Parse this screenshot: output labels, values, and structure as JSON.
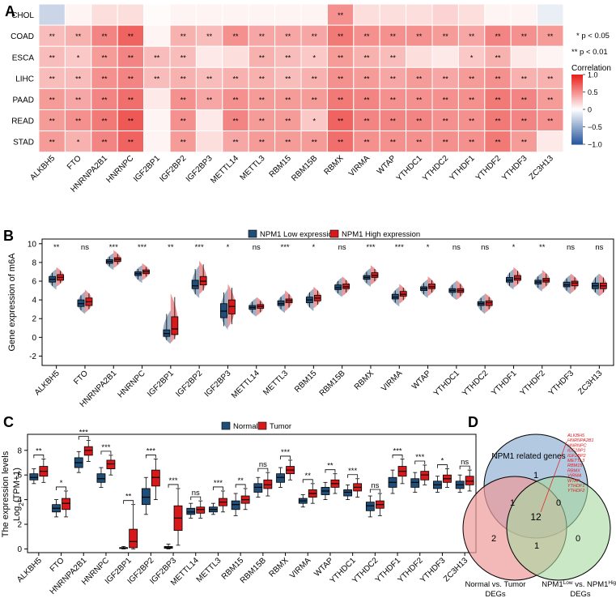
{
  "panels": {
    "a": "A",
    "b": "B",
    "c": "C",
    "d": "D"
  },
  "genes": [
    "ALKBH5",
    "FTO",
    "HNRNPA2B1",
    "HNRNPC",
    "IGF2BP1",
    "IGF2BP2",
    "IGF2BP3",
    "METTL14",
    "METTL3",
    "RBM15",
    "RBM15B",
    "RBMX",
    "VIRMA",
    "WTAP",
    "YTHDC1",
    "YTHDC2",
    "YTHDF1",
    "YTHDF2",
    "YTHDF3",
    "ZC3H13"
  ],
  "chart_data": [
    {
      "panel": "A",
      "type": "heatmap",
      "rows": [
        "CHOL",
        "COAD",
        "ESCA",
        "LIHC",
        "PAAD",
        "READ",
        "STAD"
      ],
      "columns": [
        "ALKBH5",
        "FTO",
        "HNRNPA2B1",
        "HNRNPC",
        "IGF2BP1",
        "IGF2BP2",
        "IGF2BP3",
        "METTL14",
        "METTL3",
        "RBM15",
        "RBM15B",
        "RBMX",
        "VIRMA",
        "WTAP",
        "YTHDC1",
        "YTHDC2",
        "YTHDF1",
        "YTHDF2",
        "YTHDF3",
        "ZC3H13"
      ],
      "values": [
        [
          -0.25,
          0.05,
          0.15,
          0.15,
          0.02,
          0.05,
          0.05,
          0.05,
          0.05,
          0.05,
          0.05,
          0.5,
          0.15,
          0.15,
          0.15,
          0.2,
          0.15,
          0.05,
          0.05,
          -0.1
        ],
        [
          0.3,
          0.35,
          0.55,
          0.7,
          0.05,
          0.35,
          0.3,
          0.5,
          0.4,
          0.4,
          0.4,
          0.6,
          0.5,
          0.5,
          0.5,
          0.45,
          0.4,
          0.55,
          0.5,
          0.45
        ],
        [
          0.3,
          0.25,
          0.45,
          0.55,
          0.3,
          0.3,
          0.1,
          0.15,
          0.35,
          0.3,
          0.25,
          0.45,
          0.35,
          0.3,
          0.15,
          0.1,
          0.25,
          0.35,
          0.1,
          0.05
        ],
        [
          0.3,
          0.3,
          0.5,
          0.55,
          0.3,
          0.35,
          0.3,
          0.35,
          0.35,
          0.3,
          0.35,
          0.5,
          0.45,
          0.4,
          0.45,
          0.4,
          0.45,
          0.5,
          0.35,
          0.35
        ],
        [
          0.45,
          0.4,
          0.55,
          0.65,
          0.1,
          0.5,
          0.4,
          0.5,
          0.45,
          0.45,
          0.45,
          0.6,
          0.55,
          0.5,
          0.5,
          0.5,
          0.5,
          0.6,
          0.55,
          0.45
        ],
        [
          0.45,
          0.5,
          0.6,
          0.75,
          0.05,
          0.5,
          0.1,
          0.55,
          0.45,
          0.45,
          0.25,
          0.7,
          0.55,
          0.55,
          0.55,
          0.5,
          0.5,
          0.6,
          0.55,
          0.5
        ],
        [
          0.45,
          0.35,
          0.55,
          0.7,
          0.05,
          0.45,
          0.15,
          0.4,
          0.45,
          0.45,
          0.45,
          0.65,
          0.5,
          0.5,
          0.5,
          0.5,
          0.5,
          0.6,
          0.45,
          0.1
        ]
      ],
      "stars": [
        [
          "",
          "",
          "",
          "",
          "",
          "",
          "",
          "",
          "",
          "",
          "",
          "**",
          "",
          "",
          "",
          "",
          "",
          "",
          "",
          ""
        ],
        [
          "**",
          "**",
          "**",
          "**",
          "",
          "**",
          "**",
          "**",
          "**",
          "**",
          "**",
          "**",
          "**",
          "**",
          "**",
          "**",
          "**",
          "**",
          "**",
          "**"
        ],
        [
          "**",
          "*",
          "**",
          "**",
          "**",
          "**",
          "",
          "",
          "**",
          "**",
          "*",
          "**",
          "**",
          "**",
          "",
          "",
          "*",
          "**",
          "",
          ""
        ],
        [
          "**",
          "**",
          "**",
          "**",
          "**",
          "**",
          "**",
          "**",
          "**",
          "**",
          "**",
          "**",
          "**",
          "**",
          "**",
          "**",
          "**",
          "**",
          "**",
          "**"
        ],
        [
          "**",
          "**",
          "**",
          "**",
          "",
          "**",
          "**",
          "**",
          "**",
          "**",
          "**",
          "**",
          "**",
          "**",
          "**",
          "**",
          "**",
          "**",
          "**",
          "**"
        ],
        [
          "**",
          "**",
          "**",
          "**",
          "",
          "**",
          "",
          "**",
          "**",
          "**",
          "*",
          "**",
          "**",
          "**",
          "**",
          "**",
          "**",
          "**",
          "**",
          "**"
        ],
        [
          "**",
          "*",
          "**",
          "**",
          "",
          "**",
          "",
          "**",
          "**",
          "**",
          "**",
          "**",
          "**",
          "**",
          "**",
          "**",
          "**",
          "**",
          "**",
          ""
        ]
      ],
      "sig_notes": [
        "* p < 0.05",
        "** p < 0.01"
      ],
      "legend_title": "Correlation",
      "legend_ticks": [
        "1.0",
        "0.5",
        "0",
        "−0.5",
        "−1.0"
      ],
      "legend_values": [
        1.0,
        0.5,
        0,
        -0.5,
        -1.0
      ],
      "colors": {
        "neg": "#2c5aa0",
        "mid": "#ffffff",
        "pos": "#e8221d"
      }
    },
    {
      "panel": "B",
      "type": "box",
      "ylabel": "Gene expression of m6A",
      "ylim": [
        -3,
        10.5
      ],
      "yticks": [
        -2,
        0,
        2,
        4,
        6,
        8,
        10
      ],
      "series": [
        {
          "name": "NPM1 Low expression",
          "color": "#1f4e79",
          "stats": [
            [
              5.5,
              5.9,
              6.2,
              6.5,
              6.9
            ],
            [
              2.9,
              3.3,
              3.6,
              4.0,
              4.5
            ],
            [
              7.6,
              7.9,
              8.1,
              8.3,
              8.6
            ],
            [
              6.2,
              6.6,
              6.8,
              7.0,
              7.3
            ],
            [
              -0.3,
              0.1,
              0.4,
              0.8,
              2.5
            ],
            [
              4.6,
              5.2,
              5.5,
              6.1,
              7.3
            ],
            [
              1.2,
              2.1,
              2.8,
              3.6,
              4.8
            ],
            [
              2.6,
              3.0,
              3.2,
              3.4,
              3.8
            ],
            [
              3.0,
              3.4,
              3.6,
              3.9,
              4.3
            ],
            [
              3.2,
              3.7,
              4.0,
              4.3,
              4.8
            ],
            [
              4.7,
              5.1,
              5.3,
              5.6,
              6.0
            ],
            [
              5.8,
              6.2,
              6.4,
              6.6,
              7.0
            ],
            [
              3.7,
              4.1,
              4.3,
              4.6,
              5.0
            ],
            [
              4.6,
              5.0,
              5.2,
              5.4,
              5.8
            ],
            [
              4.4,
              4.8,
              5.0,
              5.2,
              5.6
            ],
            [
              2.9,
              3.4,
              3.6,
              3.8,
              4.2
            ],
            [
              5.5,
              5.9,
              6.1,
              6.4,
              6.9
            ],
            [
              5.3,
              5.7,
              5.9,
              6.1,
              6.5
            ],
            [
              5.0,
              5.4,
              5.6,
              5.9,
              6.3
            ],
            [
              4.8,
              5.2,
              5.5,
              5.8,
              6.4
            ]
          ]
        },
        {
          "name": "NPM1 High expression",
          "color": "#d7191c",
          "stats": [
            [
              5.8,
              6.1,
              6.4,
              6.7,
              7.1
            ],
            [
              3.0,
              3.4,
              3.8,
              4.2,
              4.7
            ],
            [
              7.8,
              8.1,
              8.3,
              8.5,
              8.9
            ],
            [
              6.5,
              6.8,
              7.0,
              7.2,
              7.5
            ],
            [
              -0.2,
              0.3,
              0.9,
              2.2,
              4.3
            ],
            [
              5.0,
              5.6,
              6.0,
              6.5,
              7.8
            ],
            [
              1.4,
              2.5,
              3.3,
              4.0,
              5.3
            ],
            [
              2.7,
              3.1,
              3.3,
              3.5,
              3.9
            ],
            [
              3.2,
              3.7,
              3.9,
              4.1,
              4.6
            ],
            [
              3.5,
              3.9,
              4.2,
              4.5,
              5.0
            ],
            [
              4.8,
              5.2,
              5.4,
              5.7,
              6.1
            ],
            [
              6.0,
              6.4,
              6.6,
              6.9,
              7.3
            ],
            [
              4.0,
              4.4,
              4.6,
              4.9,
              5.3
            ],
            [
              4.8,
              5.2,
              5.4,
              5.7,
              6.1
            ],
            [
              4.4,
              4.8,
              5.0,
              5.2,
              5.7
            ],
            [
              3.0,
              3.4,
              3.7,
              3.9,
              4.3
            ],
            [
              5.7,
              6.1,
              6.3,
              6.6,
              7.1
            ],
            [
              5.5,
              5.9,
              6.1,
              6.3,
              6.8
            ],
            [
              5.1,
              5.5,
              5.8,
              6.0,
              6.4
            ],
            [
              4.8,
              5.2,
              5.5,
              5.8,
              6.4
            ]
          ]
        }
      ],
      "sig": [
        "**",
        "ns",
        "***",
        "***",
        "**",
        "***",
        "*",
        "ns",
        "***",
        "*",
        "ns",
        "***",
        "***",
        "*",
        "ns",
        "ns",
        "*",
        "**",
        "ns",
        "ns"
      ]
    },
    {
      "panel": "C",
      "type": "box",
      "ylabel": "The expression levels",
      "ylabel2_base": "Log",
      "ylabel2_sub": "2",
      "ylabel2_rest": "(TPM+1)",
      "ylim": [
        -0.3,
        9.3
      ],
      "yticks": [
        0,
        2,
        4,
        6,
        8
      ],
      "series": [
        {
          "name": "Normal",
          "color": "#1f4e79",
          "stats": [
            [
              5.3,
              5.6,
              5.8,
              6.1,
              6.5
            ],
            [
              2.6,
              3.0,
              3.3,
              3.6,
              4.0
            ],
            [
              6.2,
              6.6,
              7.0,
              7.4,
              7.9
            ],
            [
              5.0,
              5.4,
              5.7,
              6.1,
              6.6
            ],
            [
              0.0,
              0.05,
              0.1,
              0.1,
              0.2
            ],
            [
              2.8,
              3.6,
              4.2,
              4.9,
              5.8
            ],
            [
              0.0,
              0.05,
              0.1,
              0.2,
              0.4
            ],
            [
              2.5,
              2.8,
              3.0,
              3.3,
              3.7
            ],
            [
              2.8,
              3.0,
              3.2,
              3.4,
              3.7
            ],
            [
              2.7,
              3.2,
              3.6,
              3.9,
              4.5
            ],
            [
              4.2,
              4.6,
              5.0,
              5.3,
              5.8
            ],
            [
              5.0,
              5.4,
              5.8,
              6.1,
              6.6
            ],
            [
              3.4,
              3.7,
              3.9,
              4.1,
              4.4
            ],
            [
              4.0,
              4.4,
              4.7,
              5.0,
              5.4
            ],
            [
              4.0,
              4.3,
              4.6,
              4.8,
              5.2
            ],
            [
              2.6,
              3.1,
              3.5,
              3.8,
              4.3
            ],
            [
              4.5,
              5.0,
              5.4,
              5.8,
              6.4
            ],
            [
              4.6,
              5.0,
              5.4,
              5.7,
              6.2
            ],
            [
              4.6,
              4.9,
              5.2,
              5.5,
              5.9
            ],
            [
              4.6,
              4.9,
              5.2,
              5.5,
              6.0
            ]
          ]
        },
        {
          "name": "Tumor",
          "color": "#d7191c",
          "stats": [
            [
              5.4,
              5.9,
              6.3,
              6.7,
              7.3
            ],
            [
              2.6,
              3.2,
              3.7,
              4.1,
              4.7
            ],
            [
              7.1,
              7.6,
              8.0,
              8.3,
              8.8
            ],
            [
              6.0,
              6.5,
              6.9,
              7.2,
              7.6
            ],
            [
              0.0,
              0.1,
              0.6,
              1.6,
              3.6
            ],
            [
              4.0,
              5.1,
              5.8,
              6.4,
              7.3
            ],
            [
              0.3,
              1.5,
              2.5,
              3.5,
              4.9
            ],
            [
              2.5,
              2.9,
              3.2,
              3.4,
              3.9
            ],
            [
              3.0,
              3.5,
              3.8,
              4.1,
              4.7
            ],
            [
              3.2,
              3.7,
              4.0,
              4.3,
              4.9
            ],
            [
              4.3,
              4.9,
              5.2,
              5.6,
              6.2
            ],
            [
              5.6,
              6.1,
              6.4,
              6.7,
              7.2
            ],
            [
              3.7,
              4.2,
              4.5,
              4.8,
              5.3
            ],
            [
              4.5,
              5.0,
              5.3,
              5.6,
              6.1
            ],
            [
              4.2,
              4.7,
              5.0,
              5.3,
              5.7
            ],
            [
              2.7,
              3.3,
              3.6,
              3.9,
              4.5
            ],
            [
              5.3,
              5.9,
              6.3,
              6.7,
              7.3
            ],
            [
              5.2,
              5.6,
              6.0,
              6.3,
              6.8
            ],
            [
              5.0,
              5.4,
              5.7,
              6.0,
              6.5
            ],
            [
              4.7,
              5.2,
              5.5,
              5.9,
              6.4
            ]
          ]
        }
      ],
      "sig": [
        "**",
        "*",
        "***",
        "***",
        "**",
        "***",
        "***",
        "ns",
        "***",
        "**",
        "ns",
        "***",
        "**",
        "**",
        "***",
        "ns",
        "***",
        "***",
        "*",
        "ns"
      ]
    },
    {
      "panel": "D",
      "type": "venn",
      "sets": [
        "NPM1 related genes",
        "Normal vs. Tumor",
        "NPM1"
      ],
      "set_c_sup1": "Low",
      "set_c_mid": " vs. NPM1",
      "set_c_sup2": "High",
      "set_b_line2": "DEGs",
      "set_c_line2": "DEGs",
      "regions": {
        "a_only": "1",
        "b_only": "2",
        "c_only": "0",
        "ab": "1",
        "ac": "0",
        "bc": "1",
        "abc": "12"
      },
      "highlight_genes": [
        "ALKBH5",
        "HNRNPA2B1",
        "HNRNPC",
        "IGF2BP1",
        "IGF2BP2",
        "METTL3",
        "RBM15",
        "RBMX",
        "VIRMA",
        "WTAP",
        "YTHDF1",
        "YTHDF2"
      ],
      "colors": {
        "a": "#9ab7d8",
        "b": "#ee9a9a",
        "c": "#a6d9a0",
        "genes": "#e31a1c"
      }
    }
  ]
}
